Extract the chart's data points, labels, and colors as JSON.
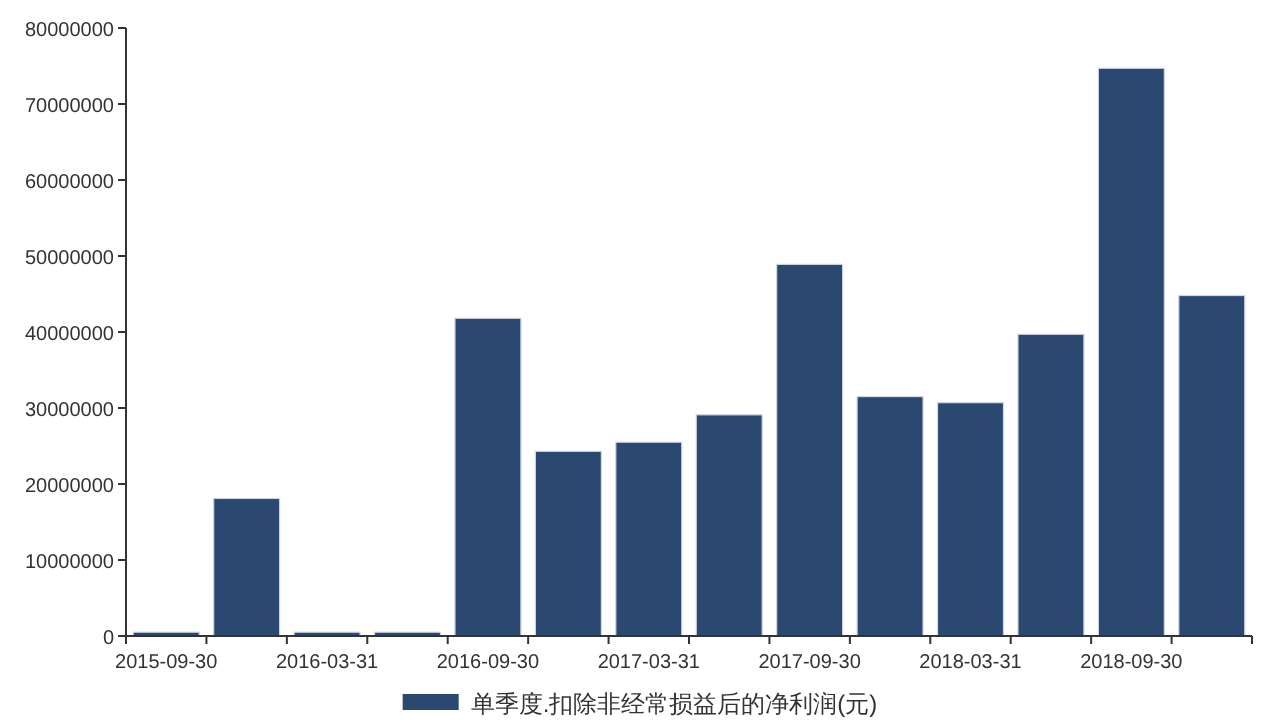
{
  "chart_data": {
    "type": "bar",
    "categories": [
      "2015-09-30",
      null,
      "2016-03-31",
      null,
      "2016-09-30",
      null,
      "2017-03-31",
      null,
      "2017-09-30",
      null,
      "2018-03-31",
      null,
      "2018-09-30",
      null
    ],
    "series": [
      {
        "name": "单季度.扣除非经常损益后的净利润(元)",
        "color": "#2b4970",
        "values": [
          500000,
          18100000,
          500000,
          500000,
          41800000,
          24300000,
          25500000,
          29100000,
          48900000,
          31500000,
          30700000,
          39700000,
          74700000,
          44800000
        ]
      }
    ],
    "ylim": [
      0,
      80000000
    ],
    "yticks": [
      0,
      10000000,
      20000000,
      30000000,
      40000000,
      50000000,
      60000000,
      70000000,
      80000000
    ],
    "grid": false,
    "legend": "bottom"
  }
}
